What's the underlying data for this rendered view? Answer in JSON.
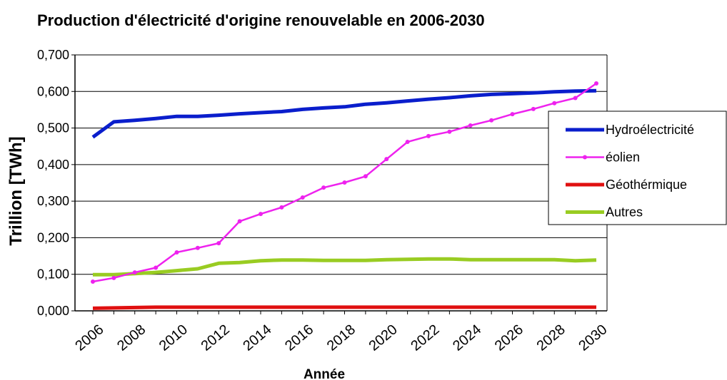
{
  "chart_data": {
    "type": "line",
    "title": "Production d'électricité d'origine renouvelable en 2006-2030",
    "xlabel": "Année",
    "ylabel": "Trillion [TWh]",
    "ylim": [
      0,
      0.7
    ],
    "yticks": [
      "0,000",
      "0,100",
      "0,200",
      "0,300",
      "0,400",
      "0,500",
      "0,600",
      "0,700"
    ],
    "xticks": [
      "2006",
      "2008",
      "2010",
      "2012",
      "2014",
      "2016",
      "2018",
      "2020",
      "2022",
      "2024",
      "2026",
      "2028",
      "2030"
    ],
    "x": [
      2006,
      2007,
      2008,
      2009,
      2010,
      2011,
      2012,
      2013,
      2014,
      2015,
      2016,
      2017,
      2018,
      2019,
      2020,
      2021,
      2022,
      2023,
      2024,
      2025,
      2026,
      2027,
      2028,
      2029,
      2030
    ],
    "grid": "horizontal",
    "legend_position": "right",
    "series": [
      {
        "name": "Hydroélectricité",
        "color": "#0a1ecc",
        "values": [
          0.475,
          0.517,
          0.521,
          0.526,
          0.532,
          0.532,
          0.535,
          0.539,
          0.542,
          0.545,
          0.551,
          0.555,
          0.558,
          0.565,
          0.569,
          0.574,
          0.579,
          0.583,
          0.588,
          0.592,
          0.594,
          0.596,
          0.599,
          0.601,
          0.602
        ]
      },
      {
        "name": "éolien",
        "color": "#ee22ee",
        "marker": "dot",
        "values": [
          0.08,
          0.09,
          0.105,
          0.118,
          0.16,
          0.172,
          0.185,
          0.245,
          0.265,
          0.283,
          0.31,
          0.337,
          0.351,
          0.368,
          0.415,
          0.462,
          0.478,
          0.49,
          0.507,
          0.521,
          0.538,
          0.552,
          0.568,
          0.582,
          0.622
        ]
      },
      {
        "name": "Géothérmique",
        "color": "#e01010",
        "values": [
          0.007,
          0.008,
          0.009,
          0.01,
          0.01,
          0.01,
          0.01,
          0.01,
          0.01,
          0.01,
          0.01,
          0.01,
          0.01,
          0.01,
          0.01,
          0.01,
          0.01,
          0.01,
          0.01,
          0.01,
          0.01,
          0.01,
          0.01,
          0.01,
          0.01
        ]
      },
      {
        "name": "Autres",
        "color": "#99cc22",
        "values": [
          0.099,
          0.099,
          0.102,
          0.105,
          0.11,
          0.115,
          0.13,
          0.132,
          0.137,
          0.139,
          0.139,
          0.138,
          0.138,
          0.138,
          0.14,
          0.141,
          0.142,
          0.142,
          0.14,
          0.14,
          0.14,
          0.14,
          0.14,
          0.137,
          0.139
        ]
      }
    ]
  }
}
